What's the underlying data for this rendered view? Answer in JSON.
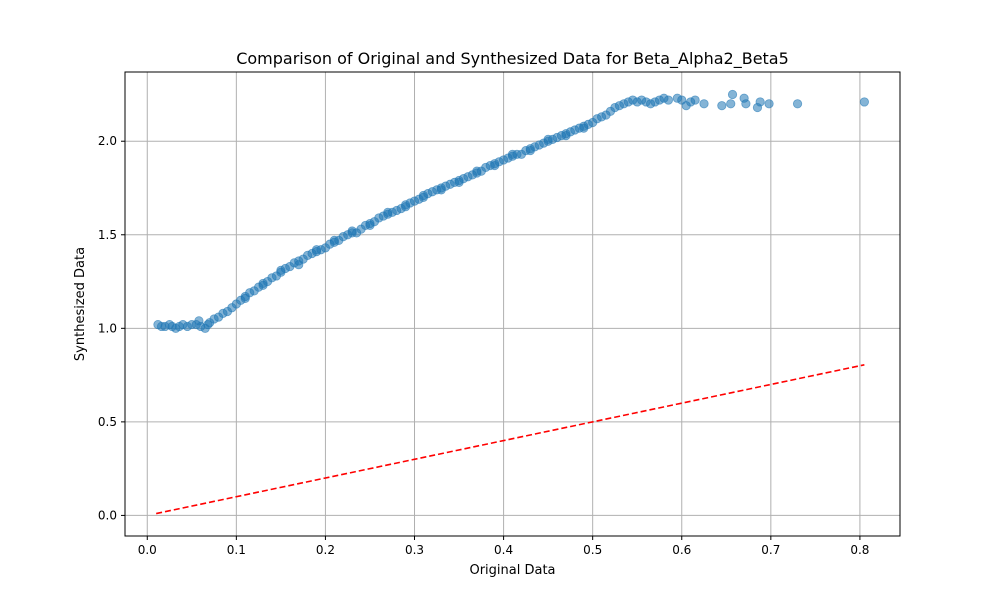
{
  "chart_data": {
    "type": "scatter",
    "title": "Comparison of Original and Synthesized Data for Beta_Alpha2_Beta5",
    "xlabel": "Original Data",
    "ylabel": "Synthesized Data",
    "xlim": [
      -0.025,
      0.845
    ],
    "ylim": [
      -0.11,
      2.37
    ],
    "xticks": [
      0.0,
      0.1,
      0.2,
      0.3,
      0.4,
      0.5,
      0.6,
      0.7,
      0.8
    ],
    "xtick_labels": [
      "0.0",
      "0.1",
      "0.2",
      "0.3",
      "0.4",
      "0.5",
      "0.6",
      "0.7",
      "0.8"
    ],
    "yticks": [
      0.0,
      0.5,
      1.0,
      1.5,
      2.0
    ],
    "ytick_labels": [
      "0.0",
      "0.5",
      "1.0",
      "1.5",
      "2.0"
    ],
    "grid": true,
    "colors": {
      "points": "#1f77b4",
      "reference_line": "#ff0000",
      "grid": "#b0b0b0"
    },
    "series": [
      {
        "kind": "scatter",
        "points": [
          [
            0.012,
            1.02
          ],
          [
            0.016,
            1.01
          ],
          [
            0.02,
            1.01
          ],
          [
            0.025,
            1.02
          ],
          [
            0.028,
            1.01
          ],
          [
            0.032,
            1.0
          ],
          [
            0.036,
            1.01
          ],
          [
            0.04,
            1.02
          ],
          [
            0.045,
            1.01
          ],
          [
            0.05,
            1.02
          ],
          [
            0.055,
            1.02
          ],
          [
            0.058,
            1.04
          ],
          [
            0.06,
            1.01
          ],
          [
            0.065,
            1.0
          ],
          [
            0.068,
            1.02
          ],
          [
            0.07,
            1.03
          ],
          [
            0.075,
            1.05
          ],
          [
            0.08,
            1.06
          ],
          [
            0.085,
            1.08
          ],
          [
            0.09,
            1.09
          ],
          [
            0.095,
            1.11
          ],
          [
            0.1,
            1.13
          ],
          [
            0.105,
            1.15
          ],
          [
            0.11,
            1.17
          ],
          [
            0.115,
            1.19
          ],
          [
            0.12,
            1.2
          ],
          [
            0.125,
            1.22
          ],
          [
            0.13,
            1.24
          ],
          [
            0.135,
            1.25
          ],
          [
            0.14,
            1.27
          ],
          [
            0.145,
            1.28
          ],
          [
            0.15,
            1.3
          ],
          [
            0.155,
            1.32
          ],
          [
            0.16,
            1.33
          ],
          [
            0.165,
            1.35
          ],
          [
            0.17,
            1.36
          ],
          [
            0.175,
            1.37
          ],
          [
            0.18,
            1.39
          ],
          [
            0.185,
            1.4
          ],
          [
            0.19,
            1.41
          ],
          [
            0.195,
            1.42
          ],
          [
            0.2,
            1.43
          ],
          [
            0.205,
            1.45
          ],
          [
            0.21,
            1.46
          ],
          [
            0.215,
            1.47
          ],
          [
            0.22,
            1.49
          ],
          [
            0.225,
            1.5
          ],
          [
            0.23,
            1.51
          ],
          [
            0.235,
            1.51
          ],
          [
            0.24,
            1.53
          ],
          [
            0.245,
            1.55
          ],
          [
            0.25,
            1.56
          ],
          [
            0.255,
            1.57
          ],
          [
            0.26,
            1.59
          ],
          [
            0.265,
            1.6
          ],
          [
            0.27,
            1.61
          ],
          [
            0.275,
            1.62
          ],
          [
            0.28,
            1.63
          ],
          [
            0.285,
            1.64
          ],
          [
            0.29,
            1.66
          ],
          [
            0.295,
            1.67
          ],
          [
            0.3,
            1.68
          ],
          [
            0.305,
            1.69
          ],
          [
            0.31,
            1.71
          ],
          [
            0.315,
            1.72
          ],
          [
            0.32,
            1.73
          ],
          [
            0.325,
            1.74
          ],
          [
            0.33,
            1.75
          ],
          [
            0.335,
            1.76
          ],
          [
            0.34,
            1.77
          ],
          [
            0.345,
            1.78
          ],
          [
            0.35,
            1.79
          ],
          [
            0.355,
            1.8
          ],
          [
            0.36,
            1.81
          ],
          [
            0.365,
            1.82
          ],
          [
            0.37,
            1.83
          ],
          [
            0.375,
            1.84
          ],
          [
            0.38,
            1.86
          ],
          [
            0.385,
            1.87
          ],
          [
            0.39,
            1.88
          ],
          [
            0.395,
            1.89
          ],
          [
            0.4,
            1.9
          ],
          [
            0.405,
            1.91
          ],
          [
            0.41,
            1.92
          ],
          [
            0.415,
            1.93
          ],
          [
            0.42,
            1.93
          ],
          [
            0.425,
            1.95
          ],
          [
            0.43,
            1.96
          ],
          [
            0.435,
            1.97
          ],
          [
            0.44,
            1.98
          ],
          [
            0.445,
            1.99
          ],
          [
            0.45,
            2.0
          ],
          [
            0.455,
            2.01
          ],
          [
            0.46,
            2.02
          ],
          [
            0.465,
            2.03
          ],
          [
            0.47,
            2.04
          ],
          [
            0.475,
            2.05
          ],
          [
            0.48,
            2.06
          ],
          [
            0.485,
            2.07
          ],
          [
            0.49,
            2.08
          ],
          [
            0.495,
            2.09
          ],
          [
            0.5,
            2.1
          ],
          [
            0.505,
            2.12
          ],
          [
            0.51,
            2.13
          ],
          [
            0.515,
            2.14
          ],
          [
            0.52,
            2.16
          ],
          [
            0.525,
            2.18
          ],
          [
            0.53,
            2.19
          ],
          [
            0.535,
            2.2
          ],
          [
            0.54,
            2.21
          ],
          [
            0.545,
            2.22
          ],
          [
            0.55,
            2.21
          ],
          [
            0.555,
            2.22
          ],
          [
            0.56,
            2.21
          ],
          [
            0.565,
            2.2
          ],
          [
            0.57,
            2.21
          ],
          [
            0.575,
            2.22
          ],
          [
            0.58,
            2.23
          ],
          [
            0.585,
            2.22
          ],
          [
            0.595,
            2.23
          ],
          [
            0.6,
            2.22
          ],
          [
            0.605,
            2.19
          ],
          [
            0.61,
            2.21
          ],
          [
            0.615,
            2.22
          ],
          [
            0.625,
            2.2
          ],
          [
            0.645,
            2.19
          ],
          [
            0.655,
            2.2
          ],
          [
            0.657,
            2.25
          ],
          [
            0.67,
            2.23
          ],
          [
            0.672,
            2.2
          ],
          [
            0.685,
            2.18
          ],
          [
            0.688,
            2.21
          ],
          [
            0.698,
            2.2
          ],
          [
            0.73,
            2.2
          ],
          [
            0.805,
            2.21
          ],
          [
            0.11,
            1.16
          ],
          [
            0.13,
            1.23
          ],
          [
            0.15,
            1.31
          ],
          [
            0.17,
            1.34
          ],
          [
            0.19,
            1.42
          ],
          [
            0.21,
            1.47
          ],
          [
            0.23,
            1.52
          ],
          [
            0.25,
            1.55
          ],
          [
            0.27,
            1.62
          ],
          [
            0.29,
            1.65
          ],
          [
            0.31,
            1.7
          ],
          [
            0.33,
            1.74
          ],
          [
            0.35,
            1.78
          ],
          [
            0.37,
            1.84
          ],
          [
            0.39,
            1.87
          ],
          [
            0.41,
            1.93
          ],
          [
            0.43,
            1.95
          ],
          [
            0.45,
            2.01
          ],
          [
            0.47,
            2.03
          ],
          [
            0.49,
            2.07
          ]
        ]
      },
      {
        "kind": "line",
        "style": "dashed",
        "points": [
          [
            0.01,
            0.01
          ],
          [
            0.805,
            0.805
          ]
        ]
      }
    ]
  }
}
